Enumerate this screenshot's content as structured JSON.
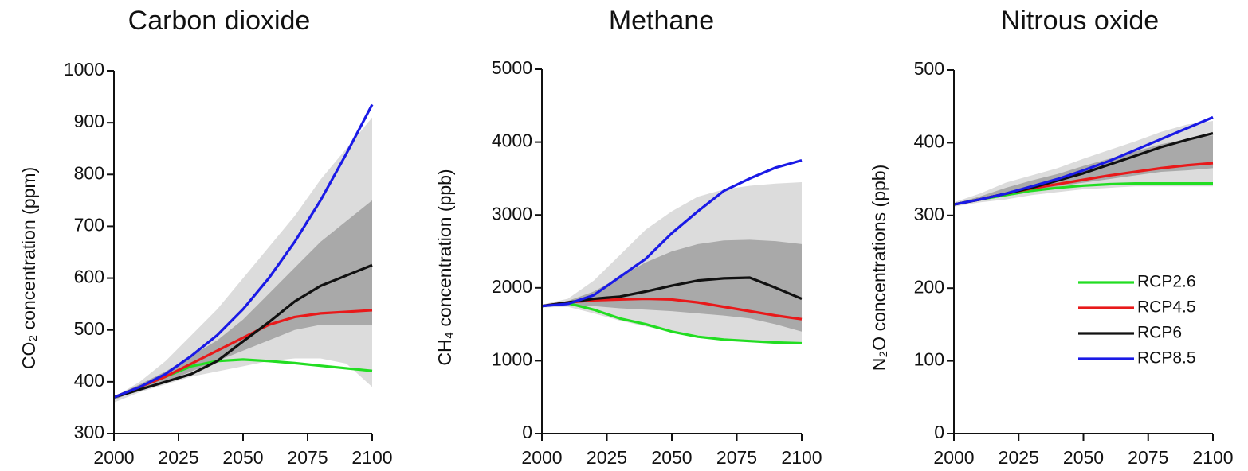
{
  "chart_data": [
    {
      "type": "line",
      "title": "Carbon dioxide",
      "y_label": "CO₂ concentration (ppm)",
      "x": [
        2000,
        2010,
        2020,
        2030,
        2040,
        2050,
        2060,
        2070,
        2080,
        2090,
        2100
      ],
      "xlim": [
        2000,
        2100
      ],
      "xticks": [
        2000,
        2025,
        2050,
        2075,
        2100
      ],
      "ylim": [
        300,
        1000
      ],
      "yticks": [
        300,
        400,
        500,
        600,
        700,
        800,
        900,
        1000
      ],
      "bands": [
        {
          "color": "#dcdcdc",
          "lower": [
            360,
            380,
            395,
            410,
            420,
            430,
            440,
            445,
            445,
            435,
            390
          ],
          "upper": [
            370,
            400,
            440,
            490,
            540,
            600,
            660,
            720,
            790,
            850,
            910
          ]
        },
        {
          "color": "#a9a9a9",
          "lower": [
            365,
            385,
            400,
            420,
            440,
            460,
            480,
            500,
            510,
            510,
            510
          ],
          "upper": [
            372,
            395,
            420,
            450,
            480,
            520,
            570,
            620,
            670,
            710,
            750
          ]
        }
      ],
      "series": [
        {
          "name": "RCP2.6",
          "color": "#22dd22",
          "values": [
            370,
            390,
            410,
            430,
            440,
            443,
            440,
            436,
            431,
            426,
            421
          ]
        },
        {
          "name": "RCP4.5",
          "color": "#e8191a",
          "values": [
            370,
            390,
            410,
            435,
            460,
            485,
            510,
            525,
            532,
            535,
            538
          ]
        },
        {
          "name": "RCP6",
          "color": "#111111",
          "values": [
            370,
            385,
            400,
            415,
            440,
            478,
            515,
            555,
            585,
            605,
            625
          ]
        },
        {
          "name": "RCP8.5",
          "color": "#1a1ae6",
          "values": [
            370,
            390,
            415,
            450,
            490,
            540,
            600,
            670,
            750,
            840,
            935
          ]
        }
      ]
    },
    {
      "type": "line",
      "title": "Methane",
      "y_label": "CH₄ concentration (ppb)",
      "x": [
        2000,
        2010,
        2020,
        2030,
        2040,
        2050,
        2060,
        2070,
        2080,
        2090,
        2100
      ],
      "xlim": [
        2000,
        2100
      ],
      "xticks": [
        2000,
        2025,
        2050,
        2075,
        2100
      ],
      "ylim": [
        0,
        5000
      ],
      "yticks": [
        0,
        1000,
        2000,
        3000,
        4000,
        5000
      ],
      "bands": [
        {
          "color": "#dcdcdc",
          "lower": [
            1730,
            1740,
            1650,
            1550,
            1470,
            1400,
            1350,
            1300,
            1280,
            1260,
            1250
          ],
          "upper": [
            1770,
            1850,
            2100,
            2450,
            2800,
            3050,
            3250,
            3350,
            3400,
            3430,
            3450
          ]
        },
        {
          "color": "#a9a9a9",
          "lower": [
            1740,
            1760,
            1750,
            1720,
            1700,
            1680,
            1650,
            1620,
            1580,
            1500,
            1400
          ],
          "upper": [
            1760,
            1820,
            1950,
            2150,
            2350,
            2500,
            2600,
            2650,
            2660,
            2640,
            2600
          ]
        }
      ],
      "series": [
        {
          "name": "RCP2.6",
          "color": "#22dd22",
          "values": [
            1750,
            1790,
            1700,
            1580,
            1500,
            1400,
            1330,
            1290,
            1270,
            1250,
            1240
          ]
        },
        {
          "name": "RCP4.5",
          "color": "#e8191a",
          "values": [
            1750,
            1800,
            1830,
            1840,
            1850,
            1840,
            1800,
            1740,
            1680,
            1620,
            1570
          ]
        },
        {
          "name": "RCP6",
          "color": "#111111",
          "values": [
            1750,
            1800,
            1850,
            1880,
            1950,
            2030,
            2100,
            2130,
            2140,
            2000,
            1850
          ]
        },
        {
          "name": "RCP8.5",
          "color": "#1a1ae6",
          "values": [
            1750,
            1780,
            1900,
            2150,
            2400,
            2750,
            3050,
            3330,
            3500,
            3650,
            3750
          ]
        }
      ]
    },
    {
      "type": "line",
      "title": "Nitrous oxide",
      "y_label": "N₂O concentrations (ppb)",
      "x": [
        2000,
        2010,
        2020,
        2030,
        2040,
        2050,
        2060,
        2070,
        2080,
        2090,
        2100
      ],
      "xlim": [
        2000,
        2100
      ],
      "xticks": [
        2000,
        2025,
        2050,
        2075,
        2100
      ],
      "ylim": [
        0,
        500
      ],
      "yticks": [
        0,
        100,
        200,
        300,
        400,
        500
      ],
      "legend": "lower right",
      "bands": [
        {
          "color": "#dcdcdc",
          "lower": [
            312,
            318,
            322,
            328,
            332,
            336,
            338,
            340,
            340,
            340,
            340
          ],
          "upper": [
            318,
            330,
            345,
            355,
            365,
            378,
            390,
            402,
            415,
            425,
            430
          ]
        },
        {
          "color": "#a9a9a9",
          "lower": [
            314,
            320,
            327,
            334,
            340,
            345,
            350,
            355,
            360,
            362,
            365
          ],
          "upper": [
            316,
            326,
            338,
            348,
            357,
            368,
            378,
            388,
            398,
            405,
            410
          ]
        }
      ],
      "series": [
        {
          "name": "RCP2.6",
          "color": "#22dd22",
          "values": [
            315,
            322,
            328,
            334,
            338,
            341,
            343,
            344,
            344,
            344,
            344
          ]
        },
        {
          "name": "RCP4.5",
          "color": "#e8191a",
          "values": [
            315,
            322,
            330,
            337,
            343,
            349,
            355,
            360,
            365,
            369,
            372
          ]
        },
        {
          "name": "RCP6",
          "color": "#111111",
          "values": [
            315,
            322,
            330,
            338,
            348,
            358,
            370,
            382,
            394,
            404,
            413
          ]
        },
        {
          "name": "RCP8.5",
          "color": "#1a1ae6",
          "values": [
            315,
            322,
            330,
            340,
            350,
            362,
            375,
            390,
            405,
            420,
            435
          ]
        }
      ]
    }
  ]
}
